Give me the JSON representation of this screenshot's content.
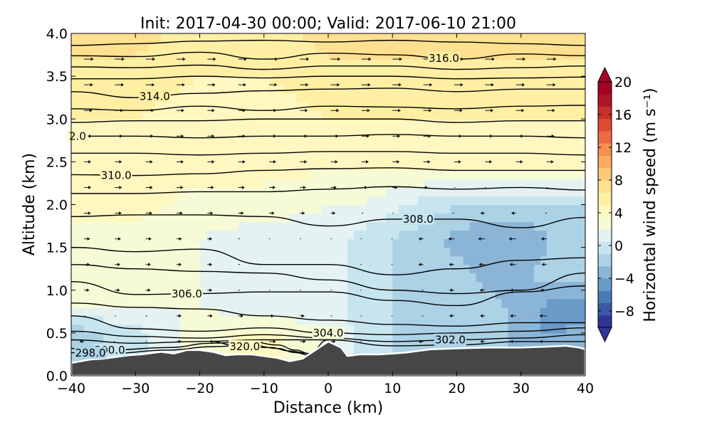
{
  "chart_data": {
    "type": "contour-cross-section",
    "title": "Init: 2017-04-30 00:00; Valid: 2017-06-10 21:00",
    "xlabel": "Distance (km)",
    "ylabel": "Altitude (km)",
    "xlim": [
      -40,
      40
    ],
    "ylim": [
      0.0,
      4.0
    ],
    "x_ticks": [
      -40,
      -30,
      -20,
      -10,
      0,
      10,
      20,
      30,
      40
    ],
    "x_tick_labels": [
      "−40",
      "−30",
      "−20",
      "−10",
      "0",
      "10",
      "20",
      "30",
      "40"
    ],
    "y_ticks": [
      0.0,
      0.5,
      1.0,
      1.5,
      2.0,
      2.5,
      3.0,
      3.5,
      4.0
    ],
    "y_tick_labels": [
      "0.0",
      "0.5",
      "1.0",
      "1.5",
      "2.0",
      "2.5",
      "3.0",
      "3.5",
      "4.0"
    ],
    "colorbar": {
      "label": "Horizontal wind speed (m s⁻¹)",
      "min": -10,
      "max": 20,
      "tick_values": [
        20,
        16,
        12,
        8,
        4,
        0,
        -4,
        -8
      ],
      "tick_labels": [
        "20",
        "16",
        "12",
        "8",
        "4",
        "0",
        "−4",
        "−8"
      ],
      "extend": "both",
      "colors": [
        "#313695",
        "#3c59a6",
        "#4a7bb7",
        "#6a9ac8",
        "#8ab5d7",
        "#acd2e5",
        "#c7e5ef",
        "#e4f2f2",
        "#f6fbd5",
        "#fff7c0",
        "#feefa3",
        "#fee090",
        "#fdc979",
        "#fdad60",
        "#f88e52",
        "#ef6b43",
        "#e04a33",
        "#c8302a",
        "#ae1626",
        "#a50026"
      ]
    },
    "terrain": {
      "x": [
        -40,
        -37,
        -35,
        -33,
        -31,
        -29,
        -26,
        -24,
        -22,
        -20,
        -18,
        -16,
        -14,
        -12,
        -10,
        -8,
        -6,
        -4,
        -2,
        0,
        2,
        3,
        5,
        8,
        12,
        16,
        20,
        25,
        30,
        34,
        37,
        39,
        40
      ],
      "y": [
        0.15,
        0.19,
        0.2,
        0.22,
        0.24,
        0.25,
        0.28,
        0.26,
        0.3,
        0.3,
        0.28,
        0.24,
        0.25,
        0.25,
        0.23,
        0.21,
        0.17,
        0.2,
        0.3,
        0.4,
        0.33,
        0.23,
        0.25,
        0.25,
        0.27,
        0.31,
        0.32,
        0.33,
        0.33,
        0.34,
        0.35,
        0.33,
        0.31
      ]
    },
    "wind_field": [
      {
        "x": [
          -40,
          -30,
          -20,
          -10,
          0,
          5,
          10,
          15,
          20,
          25,
          30,
          33,
          36,
          40
        ],
        "y": [
          0.5,
          0.5,
          0.5,
          0.5,
          0.5,
          0.5,
          0.5,
          0.5,
          0.5,
          0.5,
          0.5,
          0.5,
          0.5,
          0.5
        ],
        "speed": [
          -2,
          0,
          3,
          4,
          2,
          0,
          -1,
          -2,
          -2,
          -2,
          -3,
          -4,
          -4,
          -3
        ]
      },
      {
        "x": [
          -40,
          -30,
          -20,
          -10,
          0,
          5,
          10,
          15,
          20,
          25,
          30,
          33,
          36,
          40
        ],
        "y": [
          0.8,
          0.8,
          0.8,
          0.8,
          0.8,
          0.8,
          0.8,
          0.8,
          0.8,
          0.8,
          0.8,
          0.8,
          0.8,
          0.8
        ],
        "speed": [
          2,
          2,
          2,
          1,
          1,
          0,
          -1,
          -1,
          -2,
          -2,
          -3,
          -4,
          -5,
          -5
        ]
      },
      {
        "x": [
          -40,
          -30,
          -20,
          -10,
          0,
          5,
          10,
          15,
          20,
          25,
          30,
          33,
          36,
          40
        ],
        "y": [
          1.2,
          1.2,
          1.2,
          1.2,
          1.2,
          1.2,
          1.2,
          1.2,
          1.2,
          1.2,
          1.2,
          1.2,
          1.2,
          1.2
        ],
        "speed": [
          3,
          2,
          2,
          1,
          1,
          0,
          -1,
          -2,
          -2,
          -3,
          -3,
          -2,
          -2,
          -2
        ]
      },
      {
        "x": [
          -40,
          -30,
          -20,
          -10,
          0,
          5,
          10,
          15,
          20,
          25,
          30,
          33,
          36,
          40
        ],
        "y": [
          1.6,
          1.6,
          1.6,
          1.6,
          1.6,
          1.6,
          1.6,
          1.6,
          1.6,
          1.6,
          1.6,
          1.6,
          1.6,
          1.6
        ],
        "speed": [
          3,
          3,
          2,
          1,
          1,
          0,
          -1,
          -2,
          -3,
          -4,
          -4,
          -3,
          -2,
          -2
        ]
      },
      {
        "x": [
          -40,
          -30,
          -20,
          -10,
          0,
          5,
          10,
          15,
          20,
          25,
          30,
          33,
          36,
          40
        ],
        "y": [
          2.0,
          2.0,
          2.0,
          2.0,
          2.0,
          2.0,
          2.0,
          2.0,
          2.0,
          2.0,
          2.0,
          2.0,
          2.0,
          2.0
        ],
        "speed": [
          4,
          4,
          3,
          3,
          2,
          2,
          1,
          0,
          -1,
          -1,
          -1,
          -1,
          -1,
          -1
        ]
      },
      {
        "x": [
          -40,
          -30,
          -20,
          -10,
          0,
          5,
          10,
          15,
          20,
          25,
          30,
          33,
          36,
          40
        ],
        "y": [
          2.5,
          2.5,
          2.5,
          2.5,
          2.5,
          2.5,
          2.5,
          2.5,
          2.5,
          2.5,
          2.5,
          2.5,
          2.5,
          2.5
        ],
        "speed": [
          4,
          4,
          4,
          4,
          4,
          4,
          4,
          4,
          4,
          4,
          4,
          4,
          4,
          4
        ]
      },
      {
        "x": [
          -40,
          -30,
          -20,
          -10,
          0,
          5,
          10,
          15,
          20,
          25,
          30,
          33,
          36,
          40
        ],
        "y": [
          3.0,
          3.0,
          3.0,
          3.0,
          3.0,
          3.0,
          3.0,
          3.0,
          3.0,
          3.0,
          3.0,
          3.0,
          3.0,
          3.0
        ],
        "speed": [
          5,
          5,
          4,
          4,
          5,
          5,
          5,
          5,
          5,
          5,
          5,
          5,
          5,
          5
        ]
      },
      {
        "x": [
          -40,
          -30,
          -20,
          -10,
          0,
          5,
          10,
          15,
          20,
          25,
          30,
          33,
          36,
          40
        ],
        "y": [
          3.5,
          3.5,
          3.5,
          3.5,
          3.5,
          3.5,
          3.5,
          3.5,
          3.5,
          3.5,
          3.5,
          3.5,
          3.5,
          3.5
        ],
        "speed": [
          6,
          6,
          5,
          5,
          6,
          6,
          6,
          6,
          6,
          6,
          6,
          6,
          6,
          6
        ]
      },
      {
        "x": [
          -40,
          -30,
          -20,
          -10,
          0,
          5,
          10,
          15,
          20,
          25,
          30,
          33,
          36,
          40
        ],
        "y": [
          4.0,
          4.0,
          4.0,
          4.0,
          4.0,
          4.0,
          4.0,
          4.0,
          4.0,
          4.0,
          4.0,
          4.0,
          4.0,
          4.0
        ],
        "speed": [
          7,
          7,
          6,
          6,
          7,
          7,
          7,
          7,
          7,
          7,
          7,
          7,
          7,
          7
        ]
      }
    ],
    "theta_contours": [
      {
        "x": [
          -40,
          -30,
          -20,
          -10,
          0,
          10,
          20,
          30,
          40
        ],
        "y": [
          3.86,
          3.88,
          3.91,
          3.92,
          3.9,
          3.92,
          3.9,
          3.88,
          3.86
        ]
      },
      {
        "x": [
          -40,
          -30,
          -20,
          -10,
          0,
          10,
          20,
          30,
          40
        ],
        "y": [
          3.74,
          3.73,
          3.78,
          3.7,
          3.77,
          3.75,
          3.7,
          3.76,
          3.74
        ],
        "label": "316.0",
        "label_x": 18
      },
      {
        "x": [
          -40,
          -30,
          -20,
          -10,
          0,
          10,
          20,
          30,
          40
        ],
        "y": [
          3.61,
          3.6,
          3.63,
          3.58,
          3.62,
          3.62,
          3.58,
          3.6,
          3.62
        ]
      },
      {
        "x": [
          -40,
          -30,
          -20,
          -10,
          0,
          10,
          20,
          30,
          40
        ],
        "y": [
          3.47,
          3.47,
          3.5,
          3.48,
          3.5,
          3.5,
          3.47,
          3.48,
          3.49
        ]
      },
      {
        "x": [
          -40,
          -30,
          -20,
          -10,
          0,
          10,
          20,
          30,
          40
        ],
        "y": [
          3.32,
          3.25,
          3.3,
          3.33,
          3.35,
          3.36,
          3.32,
          3.35,
          3.35
        ],
        "label": "314.0",
        "label_x": -27
      },
      {
        "x": [
          -40,
          -30,
          -20,
          -10,
          0,
          10,
          20,
          30,
          40
        ],
        "y": [
          3.12,
          3.1,
          3.15,
          3.1,
          3.15,
          3.14,
          3.12,
          3.15,
          3.16
        ]
      },
      {
        "x": [
          -40,
          -30,
          -20,
          -10,
          0,
          10,
          20,
          30,
          40
        ],
        "y": [
          2.96,
          2.98,
          2.98,
          3.0,
          3.0,
          3.0,
          2.96,
          2.98,
          2.98
        ]
      },
      {
        "x": [
          -40,
          -30,
          -20,
          -10,
          0,
          10,
          20,
          30,
          40
        ],
        "y": [
          2.8,
          2.8,
          2.78,
          2.8,
          2.8,
          2.82,
          2.8,
          2.8,
          2.78
        ],
        "label": "2.0",
        "label_x": -39
      },
      {
        "x": [
          -40,
          -30,
          -20,
          -10,
          0,
          10,
          20,
          30,
          40
        ],
        "y": [
          2.6,
          2.6,
          2.58,
          2.6,
          2.62,
          2.62,
          2.6,
          2.6,
          2.58
        ]
      },
      {
        "x": [
          -40,
          -30,
          -20,
          -10,
          0,
          10,
          20,
          30,
          40
        ],
        "y": [
          2.35,
          2.34,
          2.36,
          2.4,
          2.42,
          2.43,
          2.4,
          2.4,
          2.4
        ],
        "label": "310.0",
        "label_x": -33
      },
      {
        "x": [
          -40,
          -30,
          -20,
          -10,
          0,
          10,
          20,
          30,
          40
        ],
        "y": [
          2.13,
          2.13,
          2.15,
          2.15,
          2.18,
          2.21,
          2.18,
          2.2,
          2.17
        ]
      },
      {
        "x": [
          -40,
          -30,
          -20,
          -10,
          0,
          10,
          20,
          30,
          40
        ],
        "y": [
          1.86,
          1.88,
          1.88,
          1.86,
          1.75,
          1.83,
          1.83,
          1.73,
          1.85
        ],
        "label": "308.0",
        "label_x": 14
      },
      {
        "x": [
          -40,
          -30,
          -20,
          -10,
          0,
          10,
          20,
          30,
          40
        ],
        "y": [
          1.5,
          1.45,
          1.48,
          1.3,
          1.3,
          1.18,
          1.25,
          1.35,
          1.38
        ]
      },
      {
        "x": [
          -40,
          -30,
          -20,
          -10,
          0,
          10,
          20,
          30,
          40
        ],
        "y": [
          1.3,
          1.25,
          1.22,
          1.2,
          1.12,
          1.0,
          0.96,
          1.0,
          1.2
        ]
      },
      {
        "x": [
          -40,
          -30,
          -20,
          -10,
          0,
          10,
          20,
          30,
          40
        ],
        "y": [
          1.1,
          0.95,
          0.96,
          0.98,
          0.98,
          0.88,
          0.82,
          0.98,
          1.05
        ],
        "label": "306.0",
        "label_x": -22
      },
      {
        "x": [
          -40,
          -30,
          -20,
          -10,
          0,
          10,
          20,
          30,
          40
        ],
        "y": [
          0.85,
          0.8,
          0.78,
          0.7,
          0.65,
          0.6,
          0.58,
          0.62,
          0.62
        ]
      },
      {
        "x": [
          -40,
          -30,
          -20,
          -10,
          0,
          10,
          20,
          30,
          40
        ],
        "y": [
          0.7,
          0.55,
          0.52,
          0.56,
          0.5,
          0.48,
          0.5,
          0.52,
          0.56
        ],
        "label": "304.0",
        "label_x": 0
      },
      {
        "x": [
          -40,
          -30,
          -20,
          -10,
          0,
          10,
          20,
          30,
          40
        ],
        "y": [
          0.52,
          0.46,
          0.44,
          0.48,
          0.44,
          0.4,
          0.42,
          0.44,
          0.48
        ],
        "label": "302.0",
        "label_x": 19
      },
      {
        "x": [
          -40,
          -30,
          -20,
          -10,
          0,
          10,
          20,
          30,
          40
        ],
        "y": [
          0.42,
          0.38,
          0.4,
          0.42,
          0.42,
          0.35,
          0.36,
          0.4,
          0.4
        ]
      },
      {
        "x": [
          -40,
          -34,
          -25,
          -18,
          -12,
          -8,
          -5,
          -3,
          0
        ],
        "y": [
          0.32,
          0.3,
          0.33,
          0.38,
          0.4,
          0.36,
          0.3,
          0.26,
          0.42
        ],
        "label": "300.0",
        "label_x": -34
      },
      {
        "x": [
          -40,
          -34,
          -25,
          -18,
          -12,
          -8,
          -5,
          -3
        ],
        "y": [
          0.27,
          0.26,
          0.3,
          0.34,
          0.36,
          0.32,
          0.27,
          0.24
        ],
        "label": "298.0",
        "label_x": -37
      },
      {
        "x": [
          -18,
          -15,
          -12,
          -9,
          -6,
          -3
        ],
        "y": [
          0.4,
          0.36,
          0.33,
          0.33,
          0.29,
          0.26
        ],
        "label": "320.0",
        "label_x": -13
      }
    ]
  }
}
